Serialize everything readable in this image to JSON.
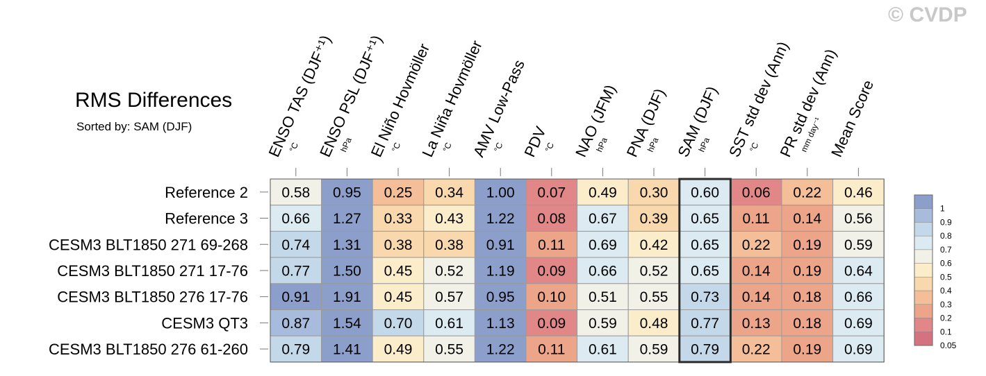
{
  "header": {
    "title": "RMS Differences",
    "subtitle": "Sorted by: SAM (DJF)",
    "watermark": "© CVDP"
  },
  "chart_data": {
    "type": "heatmap",
    "columns": [
      {
        "label": "ENSO TAS (DJF⁺¹)",
        "unit": "°C"
      },
      {
        "label": "ENSO PSL (DJF⁺¹)",
        "unit": "hPa"
      },
      {
        "label": "El Niño Hovmöller",
        "unit": "°C"
      },
      {
        "label": "La Niña Hovmöller",
        "unit": "°C"
      },
      {
        "label": "AMV Low-Pass",
        "unit": "°C"
      },
      {
        "label": "PDV",
        "unit": "°C"
      },
      {
        "label": "NAO (JFM)",
        "unit": "hPa"
      },
      {
        "label": "PNA (DJF)",
        "unit": "hPa"
      },
      {
        "label": "SAM (DJF)",
        "unit": "hPa"
      },
      {
        "label": "SST std dev (Ann)",
        "unit": "°C"
      },
      {
        "label": "PR std dev (Ann)",
        "unit": "mm day⁻¹"
      },
      {
        "label": "Mean Score",
        "unit": ""
      }
    ],
    "rows": [
      "Reference 2",
      "Reference 3",
      "CESM3 BLT1850 271 69-268",
      "CESM3 BLT1850 271 17-76",
      "CESM3 BLT1850 276 17-76",
      "CESM3 QT3",
      "CESM3 BLT1850 276 61-260"
    ],
    "values": [
      [
        "0.58",
        "0.95",
        "0.25",
        "0.34",
        "1.00",
        "0.07",
        "0.49",
        "0.30",
        "0.60",
        "0.06",
        "0.22",
        "0.46"
      ],
      [
        "0.66",
        "1.27",
        "0.33",
        "0.43",
        "1.22",
        "0.08",
        "0.67",
        "0.39",
        "0.65",
        "0.11",
        "0.14",
        "0.56"
      ],
      [
        "0.74",
        "1.31",
        "0.38",
        "0.38",
        "0.91",
        "0.11",
        "0.69",
        "0.42",
        "0.65",
        "0.22",
        "0.19",
        "0.59"
      ],
      [
        "0.77",
        "1.50",
        "0.45",
        "0.52",
        "1.19",
        "0.09",
        "0.66",
        "0.52",
        "0.65",
        "0.14",
        "0.19",
        "0.64"
      ],
      [
        "0.91",
        "1.91",
        "0.45",
        "0.57",
        "0.95",
        "0.10",
        "0.51",
        "0.55",
        "0.73",
        "0.14",
        "0.18",
        "0.66"
      ],
      [
        "0.87",
        "1.54",
        "0.70",
        "0.61",
        "1.13",
        "0.09",
        "0.59",
        "0.48",
        "0.77",
        "0.13",
        "0.18",
        "0.69"
      ],
      [
        "0.79",
        "1.41",
        "0.49",
        "0.55",
        "1.22",
        "0.11",
        "0.61",
        "0.59",
        "0.79",
        "0.22",
        "0.19",
        "0.69"
      ]
    ],
    "highlighted_column": "SAM (DJF)",
    "legend": {
      "placement": "right",
      "labels": [
        "1",
        "0.9",
        "0.8",
        "0.7",
        "0.6",
        "0.5",
        "0.4",
        "0.3",
        "0.2",
        "0.1",
        "0.05"
      ],
      "colors": [
        "#8c9fcb",
        "#a7bcdc",
        "#c3d8e9",
        "#dcebf2",
        "#f2f1e8",
        "#fbecca",
        "#f8d8ac",
        "#f4bf98",
        "#eda58a",
        "#e28787",
        "#d5727f"
      ]
    }
  }
}
